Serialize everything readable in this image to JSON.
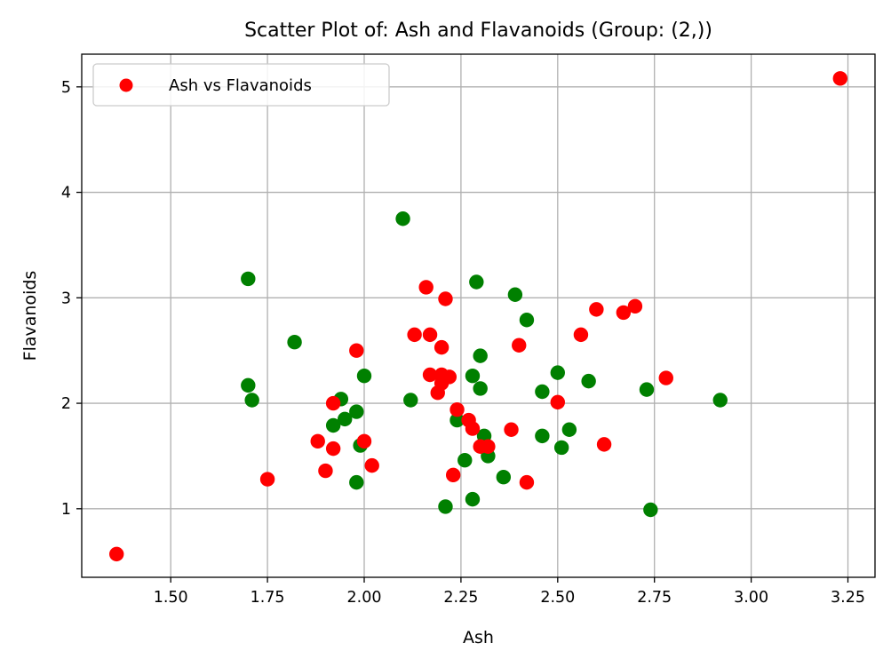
{
  "chart_data": {
    "type": "scatter",
    "title": "Scatter Plot of: Ash and Flavanoids (Group: (2,))",
    "xlabel": "Ash",
    "ylabel": "Flavanoids",
    "xlim": [
      1.27,
      3.32
    ],
    "ylim": [
      0.35,
      5.31
    ],
    "xticks": [
      1.5,
      1.75,
      2.0,
      2.25,
      2.5,
      2.75,
      3.0,
      3.25
    ],
    "xtick_labels": [
      "1.50",
      "1.75",
      "2.00",
      "2.25",
      "2.50",
      "2.75",
      "3.00",
      "3.25"
    ],
    "yticks": [
      1,
      2,
      3,
      4,
      5
    ],
    "ytick_labels": [
      "1",
      "2",
      "3",
      "4",
      "5"
    ],
    "grid": true,
    "legend": {
      "position": "top-left",
      "entries": [
        "Ash vs Flavanoids"
      ]
    },
    "series": [
      {
        "name": "Ash vs Flavanoids",
        "color": "#ff0000",
        "points": [
          [
            1.36,
            0.57
          ],
          [
            1.75,
            1.28
          ],
          [
            1.88,
            1.64
          ],
          [
            1.9,
            1.36
          ],
          [
            1.92,
            1.57
          ],
          [
            1.92,
            2.0
          ],
          [
            1.98,
            2.5
          ],
          [
            2.0,
            1.64
          ],
          [
            2.02,
            1.41
          ],
          [
            2.13,
            2.65
          ],
          [
            2.16,
            3.1
          ],
          [
            2.17,
            2.65
          ],
          [
            2.17,
            2.27
          ],
          [
            2.19,
            2.1
          ],
          [
            2.2,
            2.27
          ],
          [
            2.2,
            2.53
          ],
          [
            2.2,
            2.19
          ],
          [
            2.21,
            2.99
          ],
          [
            2.22,
            2.25
          ],
          [
            2.23,
            1.32
          ],
          [
            2.24,
            1.94
          ],
          [
            2.27,
            1.84
          ],
          [
            2.28,
            1.76
          ],
          [
            2.3,
            1.59
          ],
          [
            2.32,
            1.59
          ],
          [
            2.38,
            1.75
          ],
          [
            2.4,
            2.55
          ],
          [
            2.42,
            1.25
          ],
          [
            2.5,
            2.01
          ],
          [
            2.56,
            2.65
          ],
          [
            2.6,
            2.89
          ],
          [
            2.62,
            1.61
          ],
          [
            2.67,
            2.86
          ],
          [
            2.7,
            2.92
          ],
          [
            2.78,
            2.24
          ],
          [
            3.23,
            5.08
          ]
        ]
      },
      {
        "name": "",
        "color": "#008000",
        "points": [
          [
            1.7,
            3.18
          ],
          [
            1.7,
            2.17
          ],
          [
            1.71,
            2.03
          ],
          [
            1.82,
            2.58
          ],
          [
            1.92,
            1.79
          ],
          [
            1.94,
            2.04
          ],
          [
            1.95,
            1.85
          ],
          [
            1.98,
            1.92
          ],
          [
            1.98,
            1.25
          ],
          [
            1.99,
            1.6
          ],
          [
            2.0,
            2.26
          ],
          [
            2.1,
            3.75
          ],
          [
            2.12,
            2.03
          ],
          [
            2.21,
            1.02
          ],
          [
            2.24,
            1.84
          ],
          [
            2.26,
            1.46
          ],
          [
            2.28,
            2.26
          ],
          [
            2.28,
            1.09
          ],
          [
            2.29,
            3.15
          ],
          [
            2.3,
            2.45
          ],
          [
            2.3,
            2.14
          ],
          [
            2.31,
            1.69
          ],
          [
            2.32,
            1.5
          ],
          [
            2.36,
            1.3
          ],
          [
            2.39,
            3.03
          ],
          [
            2.42,
            2.79
          ],
          [
            2.46,
            2.11
          ],
          [
            2.46,
            1.69
          ],
          [
            2.5,
            2.29
          ],
          [
            2.51,
            1.58
          ],
          [
            2.53,
            1.75
          ],
          [
            2.58,
            2.21
          ],
          [
            2.73,
            2.13
          ],
          [
            2.74,
            0.99
          ],
          [
            2.92,
            2.03
          ]
        ]
      }
    ]
  }
}
